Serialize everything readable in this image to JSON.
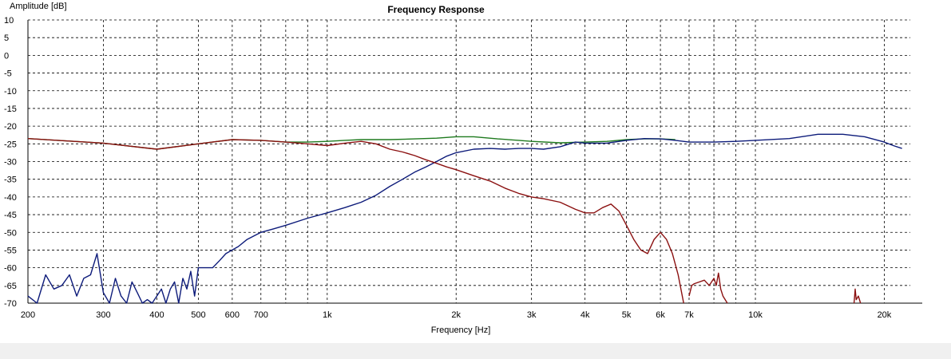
{
  "chart_data": {
    "type": "line",
    "title": "Frequency Response",
    "xlabel": "Frequency [Hz]",
    "ylabel": "Amplitude [dB]",
    "x_scale": "log",
    "xlim": [
      200,
      23000
    ],
    "ylim": [
      -70,
      10
    ],
    "grid": true,
    "y_ticks": [
      10,
      5,
      0,
      -5,
      -10,
      -15,
      -20,
      -25,
      -30,
      -35,
      -40,
      -45,
      -50,
      -55,
      -60,
      -65,
      -70
    ],
    "x_tick_values": [
      200,
      300,
      400,
      500,
      600,
      700,
      1000,
      2000,
      3000,
      4000,
      5000,
      6000,
      7000,
      10000,
      20000
    ],
    "x_tick_labels": [
      "200",
      "300",
      "400",
      "500",
      "600",
      "700",
      "1k",
      "2k",
      "3k",
      "4k",
      "5k",
      "6k",
      "7k",
      "10k",
      "20k"
    ],
    "x_minor_grid": [
      800,
      900,
      8000,
      9000
    ],
    "series": [
      {
        "color": "#1e7a1e",
        "x": [
          200,
          300,
          400,
          500,
          600,
          700,
          800,
          900,
          1000,
          1100,
          1200,
          1400,
          1600,
          1800,
          2000,
          2200,
          2500,
          2800,
          3000,
          3500,
          4000,
          4500,
          5000,
          5500,
          6000,
          6500
        ],
        "y": [
          -23.5,
          -24.8,
          -26.5,
          -25,
          -23.8,
          -24,
          -24.5,
          -24.5,
          -24.3,
          -24,
          -23.8,
          -23.8,
          -23.6,
          -23.4,
          -23,
          -23,
          -23.6,
          -24,
          -24.3,
          -24.7,
          -24.5,
          -24.3,
          -23.8,
          -23.6,
          -23.6,
          -23.8
        ]
      },
      {
        "color": "#0d1b7a",
        "x": [
          200,
          210,
          220,
          230,
          240,
          250,
          260,
          270,
          280,
          290,
          300,
          310,
          320,
          330,
          340,
          350,
          360,
          370,
          380,
          390,
          400,
          410,
          420,
          430,
          440,
          450,
          460,
          470,
          480,
          490,
          500,
          520,
          540,
          560,
          580,
          600,
          620,
          650,
          700,
          750,
          800,
          900,
          1000,
          1100,
          1200,
          1300,
          1400,
          1500,
          1600,
          1700,
          1800,
          1900,
          2000,
          2200,
          2400,
          2600,
          2800,
          3000,
          3200,
          3500,
          3800,
          4000,
          4500,
          5000,
          5500,
          6000,
          6500,
          7000,
          8000,
          9000,
          10000,
          12000,
          14000,
          16000,
          18000,
          20000,
          21000,
          22000
        ],
        "y": [
          -68,
          -70,
          -62,
          -66,
          -65,
          -62,
          -68,
          -63,
          -62,
          -56,
          -67,
          -70,
          -63,
          -68,
          -70,
          -64,
          -67,
          -70,
          -69,
          -70,
          -68,
          -66,
          -70,
          -66,
          -64,
          -70,
          -63,
          -66,
          -61,
          -68,
          -60,
          -60,
          -60,
          -58,
          -56,
          -55,
          -54,
          -52,
          -50,
          -49,
          -48,
          -46,
          -44.5,
          -43,
          -41.5,
          -39.5,
          -37,
          -35,
          -33,
          -31.5,
          -30,
          -28.5,
          -27.5,
          -26.5,
          -26.3,
          -26.5,
          -26.3,
          -26.3,
          -26.5,
          -25.8,
          -24.5,
          -24.8,
          -24.8,
          -24,
          -23.5,
          -23.6,
          -24,
          -24.5,
          -24.5,
          -24.3,
          -24,
          -23.5,
          -22.3,
          -22.3,
          -23,
          -24.5,
          -25.5,
          -26.3
        ]
      },
      {
        "color": "#8b1010",
        "x": [
          200,
          300,
          400,
          500,
          600,
          700,
          800,
          900,
          1000,
          1100,
          1200,
          1300,
          1400,
          1500,
          1600,
          1700,
          1800,
          1900,
          2000,
          2200,
          2400,
          2600,
          2800,
          3000,
          3200,
          3500,
          3800,
          4000,
          4200,
          4400,
          4600,
          4800,
          5000,
          5200,
          5400,
          5600,
          5800,
          6000,
          6200,
          6400,
          6600,
          6800
        ],
        "y": [
          -23.5,
          -24.8,
          -26.5,
          -25,
          -23.8,
          -24,
          -24.5,
          -25,
          -25.5,
          -24.8,
          -24.3,
          -25,
          -26.5,
          -27.3,
          -28.3,
          -29.5,
          -30.5,
          -31.5,
          -32.3,
          -34,
          -35.5,
          -37.5,
          -39,
          -40,
          -40.5,
          -41.5,
          -43.5,
          -44.5,
          -44.5,
          -43,
          -42,
          -44,
          -48,
          -52,
          -55,
          -56,
          -52,
          -50,
          -52,
          -56,
          -62,
          -70
        ]
      },
      {
        "color": "#8b1010",
        "x": [
          7000,
          7100,
          7200,
          7400,
          7600,
          7800,
          8000,
          8100,
          8200,
          8300,
          8400,
          8600
        ],
        "y": [
          -68,
          -65,
          -64.5,
          -64,
          -63.5,
          -65,
          -63,
          -65,
          -61.5,
          -66,
          -68,
          -70
        ]
      },
      {
        "color": "#8b1010",
        "x": [
          17000,
          17100,
          17200,
          17400,
          17600
        ],
        "y": [
          -70,
          -66,
          -69,
          -68,
          -70
        ]
      }
    ]
  }
}
